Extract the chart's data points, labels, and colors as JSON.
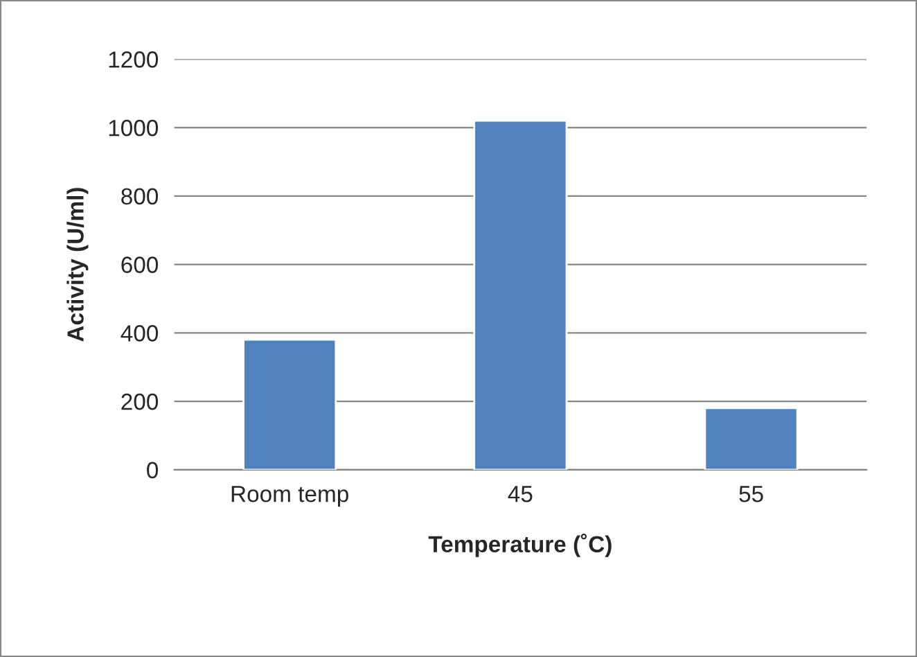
{
  "chart_data": {
    "type": "bar",
    "xlabel": "Temperature (˚C)",
    "ylabel": "Activity (U/ml)",
    "categories": [
      "Room temp",
      "45",
      "55"
    ],
    "series": [
      {
        "color": "#4f81bd",
        "values": [
          380,
          1020,
          180
        ]
      }
    ],
    "ylim": [
      0,
      1200
    ],
    "yticks": [
      0,
      200,
      400,
      600,
      800,
      1000,
      1200
    ],
    "grid": "y"
  }
}
